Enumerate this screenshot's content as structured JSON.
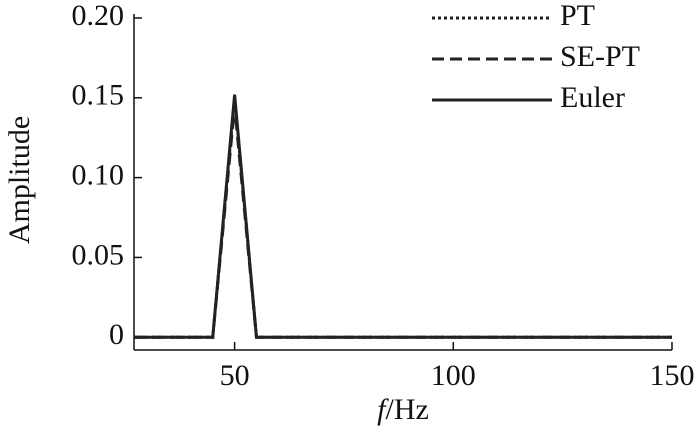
{
  "chart_data": {
    "type": "line",
    "y_label": "Amplitude",
    "x_label_var": "f",
    "x_label_unit": "/Hz",
    "x": [
      27,
      45,
      50,
      55,
      150
    ],
    "series": [
      {
        "name": "PT",
        "color": "#222222",
        "style": "dotted",
        "values": [
          0,
          0,
          0.15,
          0,
          0
        ]
      },
      {
        "name": "SE-PT",
        "color": "#222222",
        "style": "dashed",
        "values": [
          0,
          0,
          0.145,
          0,
          0
        ]
      },
      {
        "name": "Euler",
        "color": "#222222",
        "style": "solid",
        "values": [
          0,
          0,
          0.152,
          0,
          0
        ]
      }
    ],
    "xlim": [
      27,
      150
    ],
    "ylim": [
      -0.008,
      0.2
    ],
    "xticks": [
      50,
      100,
      150
    ],
    "yticks": [
      {
        "value": 0.2,
        "label": "0.20"
      },
      0.15,
      {
        "value": 0.1,
        "label": "0.10"
      },
      0.05,
      0
    ],
    "legend": "top-right"
  }
}
